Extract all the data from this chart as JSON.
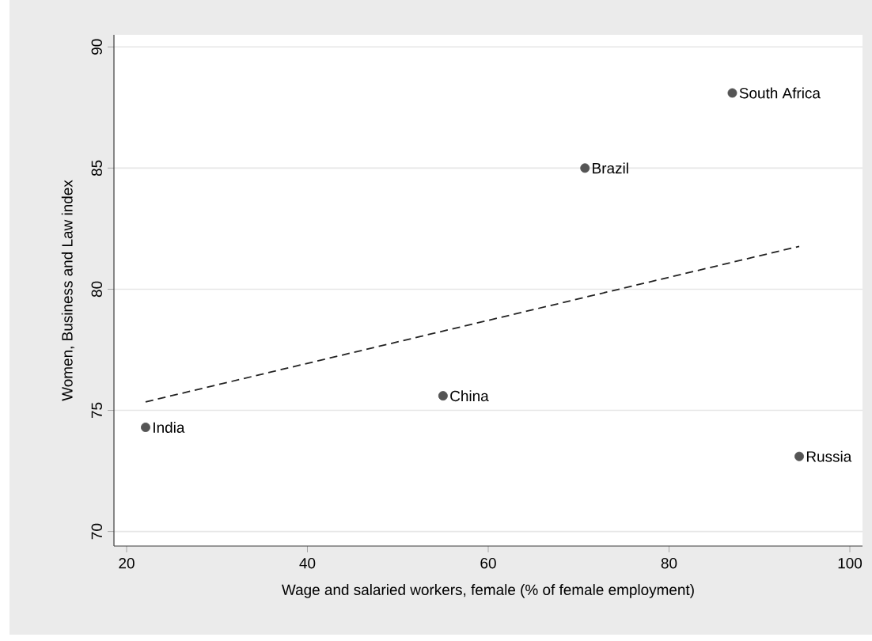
{
  "chart_data": {
    "type": "scatter",
    "xlabel": "Wage and salaried workers, female (% of female employment)",
    "ylabel": "Women, Business and  Law index",
    "series": [
      {
        "color": "#555555",
        "marker": "circle",
        "x": [
          22.1,
          55.0,
          70.7,
          87.0,
          94.4
        ],
        "values": [
          74.3,
          75.6,
          85.0,
          88.1,
          73.1
        ]
      },
      {
        "type": "line",
        "color": "#222222",
        "line_style": "dashed",
        "marker": "none",
        "x": [
          22.1,
          94.4
        ],
        "values": [
          75.35,
          81.77
        ]
      }
    ],
    "annotations": [
      {
        "text": "India",
        "x": 22.1,
        "y": 74.3
      },
      {
        "text": "China",
        "x": 55.0,
        "y": 75.6
      },
      {
        "text": "Brazil",
        "x": 70.7,
        "y": 85.0
      },
      {
        "text": "South Africa",
        "x": 87.0,
        "y": 88.1
      },
      {
        "text": "Russia",
        "x": 94.4,
        "y": 73.1
      }
    ],
    "xlim": [
      18.6,
      101.4
    ],
    "ylim": [
      69.4,
      90.5
    ],
    "xticks": [
      20,
      40,
      60,
      80,
      100
    ],
    "yticks": [
      70,
      75,
      80,
      85,
      90
    ],
    "grid": "y"
  }
}
